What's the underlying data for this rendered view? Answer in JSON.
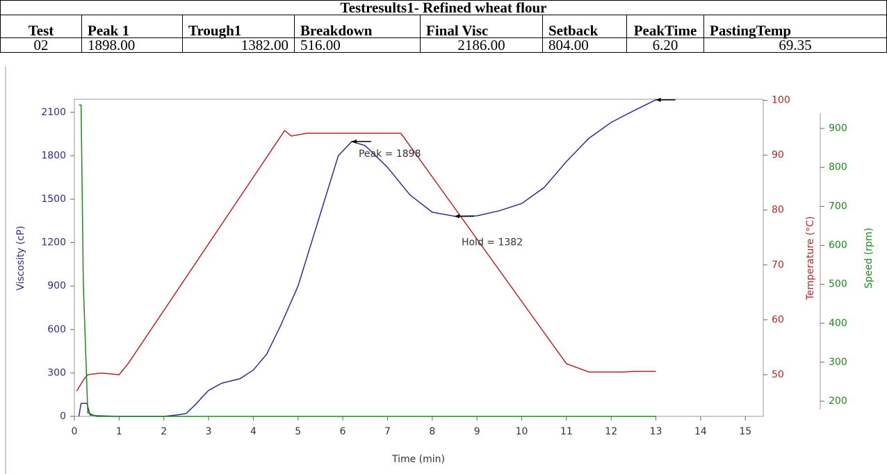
{
  "table": {
    "title": "Testresults1- Refined wheat flour",
    "header": [
      "Test",
      "Peak 1",
      "Trough1",
      "Breakdown",
      "Final Visc",
      "Setback",
      "PeakTime",
      "PastingTemp"
    ],
    "rows": [
      [
        "02",
        "1898.00",
        "1382.00",
        "516.00",
        "2186.00",
        "804.00",
        "6.20",
        "69.35"
      ]
    ]
  },
  "chart_data": {
    "type": "line",
    "xlabel": "Time (min)",
    "ylabel": "Viscosity (cP)",
    "y2label": "Temperature (°C)",
    "y3label": "Speed (rpm)",
    "xlim": [
      0,
      15.4
    ],
    "xticks": [
      0,
      1,
      2,
      3,
      4,
      5,
      6,
      7,
      8,
      9,
      10,
      11,
      12,
      13,
      14,
      15
    ],
    "ylim": [
      0,
      2190
    ],
    "yticks": [
      0,
      300,
      600,
      900,
      1200,
      1500,
      1800,
      2100
    ],
    "y2lim": [
      42.4,
      100.2
    ],
    "y2ticks": [
      50,
      60,
      70,
      80,
      90,
      100
    ],
    "y3lim": [
      161,
      975
    ],
    "y3ticks": [
      200,
      300,
      400,
      500,
      600,
      700,
      800,
      900
    ],
    "series": [
      {
        "name": "Viscosity",
        "color": "#2e2e8a",
        "axis": "y",
        "x": [
          0.1,
          0.15,
          0.28,
          0.35,
          0.5,
          1,
          2,
          2.3,
          2.5,
          2.7,
          3,
          3.3,
          3.7,
          4,
          4.3,
          4.6,
          5,
          5.3,
          5.6,
          5.9,
          6.2,
          6.5,
          7,
          7.5,
          8,
          8.5,
          9,
          9.5,
          10,
          10.5,
          11,
          11.5,
          12,
          12.5,
          13
        ],
        "values": [
          0,
          90,
          90,
          10,
          5,
          0,
          0,
          10,
          20,
          80,
          180,
          230,
          260,
          320,
          430,
          620,
          900,
          1200,
          1500,
          1800,
          1898,
          1870,
          1720,
          1530,
          1410,
          1382,
          1385,
          1420,
          1470,
          1580,
          1760,
          1920,
          2030,
          2110,
          2186
        ]
      },
      {
        "name": "Temperature",
        "color": "#b52626",
        "axis": "y2",
        "x": [
          0.05,
          0.2,
          0.3,
          0.6,
          1,
          1.2,
          4.7,
          4.85,
          5.2,
          7.3,
          11,
          11.5,
          12.3,
          12.5,
          13
        ],
        "values": [
          47,
          49,
          50,
          50.3,
          50,
          52,
          94.5,
          93.5,
          94,
          94,
          52,
          50.5,
          50.5,
          50.6,
          50.6
        ]
      },
      {
        "name": "Speed",
        "color": "#1a8a1a",
        "axis": "y3",
        "x": [
          0.1,
          0.15,
          0.2,
          0.3,
          0.5,
          13
        ],
        "values": [
          960,
          960,
          500,
          170,
          161,
          161
        ]
      }
    ],
    "annotations": [
      {
        "text": "Peak = 1898",
        "x": 6.2,
        "y": 1898
      },
      {
        "text": "Hold = 1382",
        "x": 8.5,
        "y": 1382
      }
    ]
  }
}
